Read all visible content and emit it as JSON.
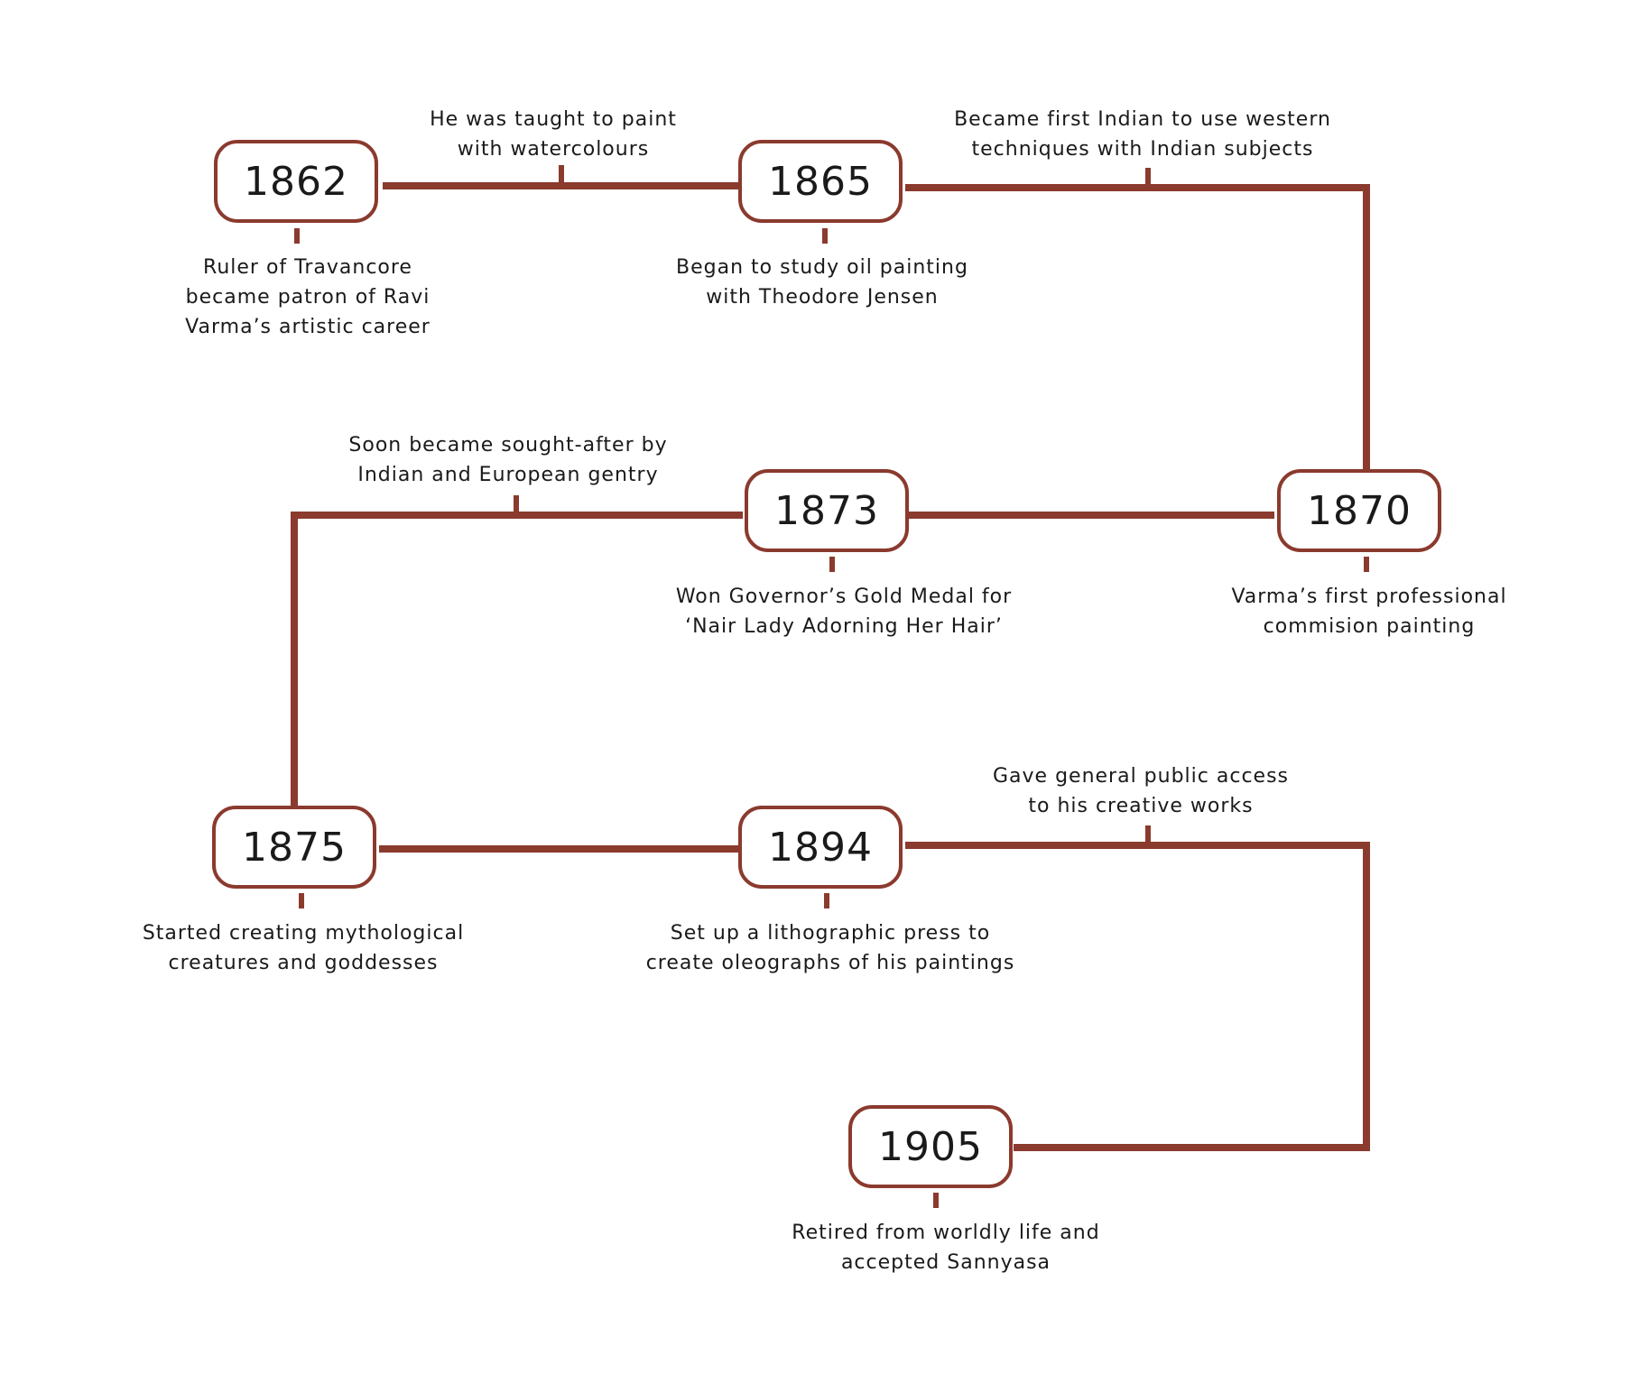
{
  "line_color": "#8b3a2e",
  "events": [
    {
      "year": "1862",
      "caption": [
        "Ruler of Travancore",
        "became patron of Ravi",
        "Varma’s artistic career"
      ]
    },
    {
      "year": "1865",
      "caption": [
        "Began to study oil painting",
        "with Theodore Jensen"
      ]
    },
    {
      "year": "1870",
      "caption": [
        "Varma’s first professional",
        "commision painting"
      ]
    },
    {
      "year": "1873",
      "caption": [
        "Won Governor’s Gold Medal for",
        "‘Nair Lady Adorning Her Hair’"
      ]
    },
    {
      "year": "1875",
      "caption": [
        "Started creating mythological",
        "creatures and goddesses"
      ]
    },
    {
      "year": "1894",
      "caption": [
        "Set up a lithographic press to",
        "create oleographs of his paintings"
      ]
    },
    {
      "year": "1905",
      "caption": [
        "Retired from worldly life and",
        "accepted Sannyasa"
      ]
    }
  ],
  "connector_notes": [
    {
      "text": [
        "He was taught to paint",
        "with watercolours"
      ]
    },
    {
      "text": [
        "Became first Indian to use western",
        "techniques with Indian subjects"
      ]
    },
    {
      "text": [
        "Soon became sought-after by",
        "Indian and European gentry"
      ]
    },
    {
      "text": [
        "Gave general public access",
        "to his creative works"
      ]
    }
  ]
}
